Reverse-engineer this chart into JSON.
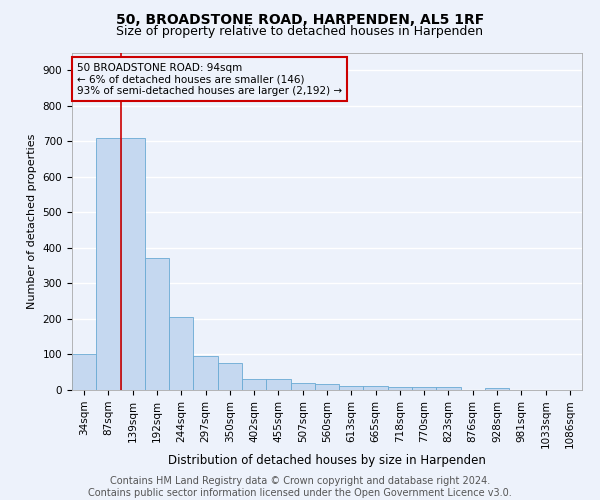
{
  "title1": "50, BROADSTONE ROAD, HARPENDEN, AL5 1RF",
  "title2": "Size of property relative to detached houses in Harpenden",
  "xlabel": "Distribution of detached houses by size in Harpenden",
  "ylabel": "Number of detached properties",
  "categories": [
    "34sqm",
    "87sqm",
    "139sqm",
    "192sqm",
    "244sqm",
    "297sqm",
    "350sqm",
    "402sqm",
    "455sqm",
    "507sqm",
    "560sqm",
    "613sqm",
    "665sqm",
    "718sqm",
    "770sqm",
    "823sqm",
    "876sqm",
    "928sqm",
    "981sqm",
    "1033sqm",
    "1086sqm"
  ],
  "values": [
    100,
    710,
    710,
    372,
    205,
    97,
    75,
    30,
    32,
    20,
    18,
    10,
    10,
    8,
    8,
    8,
    0,
    7,
    0,
    0,
    0
  ],
  "bar_color": "#c5d8f0",
  "bar_edge_color": "#6aaad4",
  "vline_color": "#cc0000",
  "box_edge_color": "#cc0000",
  "annotation_box_text": "50 BROADSTONE ROAD: 94sqm\n← 6% of detached houses are smaller (146)\n93% of semi-detached houses are larger (2,192) →",
  "ylim": [
    0,
    950
  ],
  "yticks": [
    0,
    100,
    200,
    300,
    400,
    500,
    600,
    700,
    800,
    900
  ],
  "footer_line1": "Contains HM Land Registry data © Crown copyright and database right 2024.",
  "footer_line2": "Contains public sector information licensed under the Open Government Licence v3.0.",
  "background_color": "#edf2fb",
  "grid_color": "#ffffff",
  "title1_fontsize": 10,
  "title2_fontsize": 9,
  "xlabel_fontsize": 8.5,
  "ylabel_fontsize": 8,
  "tick_fontsize": 7.5,
  "annot_fontsize": 7.5,
  "footer_fontsize": 7
}
